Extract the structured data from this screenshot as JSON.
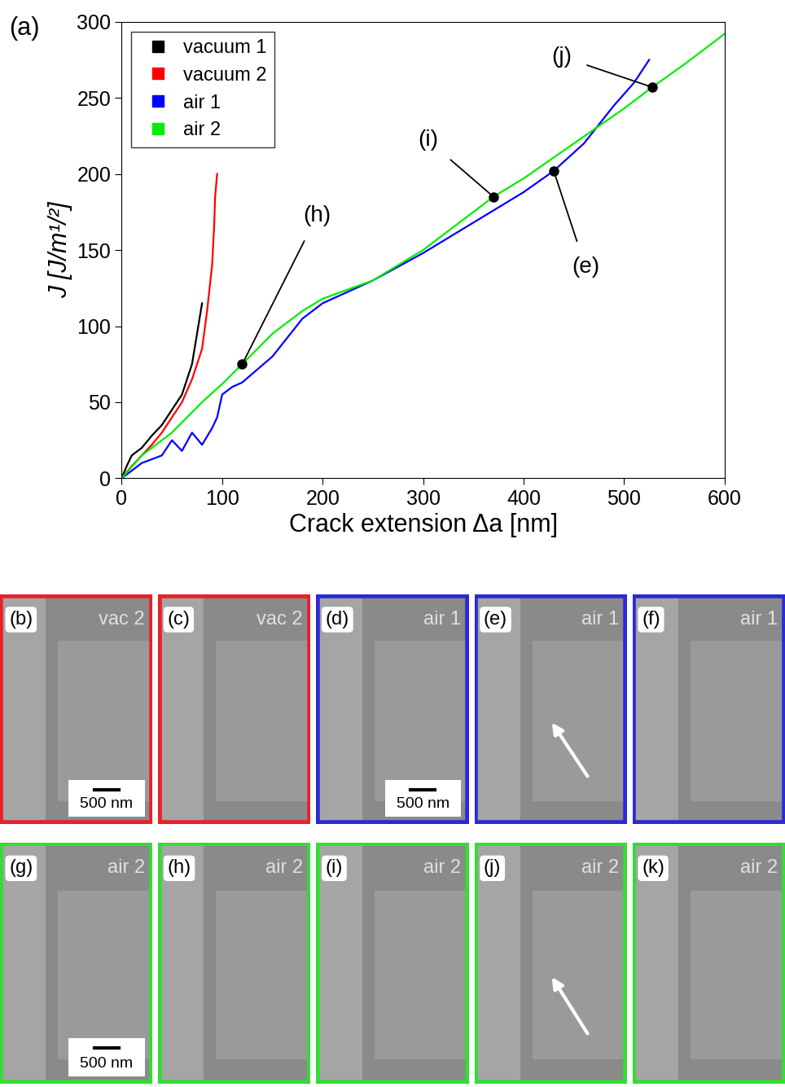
{
  "chart_data": {
    "type": "line",
    "title": "(a)",
    "x_label": "Crack extension Δa [nm]",
    "y_label": "J [J/m¹/²]",
    "xlim": [
      0,
      600
    ],
    "xticks": [
      0,
      100,
      200,
      300,
      400,
      500,
      600
    ],
    "ylim": [
      0,
      300
    ],
    "yticks": [
      0,
      50,
      100,
      150,
      200,
      250,
      300
    ],
    "legend": "upper left",
    "series": [
      {
        "name": "vacuum 1",
        "color": "#000000",
        "x": [
          0,
          5,
          10,
          20,
          30,
          40,
          50,
          60,
          70,
          75,
          80
        ],
        "values": [
          0,
          8,
          15,
          20,
          28,
          35,
          45,
          55,
          75,
          95,
          115
        ]
      },
      {
        "name": "vacuum 2",
        "color": "#ff0000",
        "x": [
          0,
          10,
          20,
          30,
          40,
          50,
          60,
          70,
          80,
          85,
          90,
          92,
          93,
          95
        ],
        "values": [
          0,
          8,
          15,
          22,
          30,
          40,
          50,
          65,
          85,
          110,
          140,
          165,
          185,
          200
        ]
      },
      {
        "name": "air 1",
        "color": "#0000ff",
        "x": [
          0,
          20,
          40,
          50,
          60,
          70,
          80,
          90,
          95,
          100,
          110,
          120,
          150,
          180,
          200,
          250,
          300,
          350,
          400,
          430,
          460,
          490,
          510,
          525
        ],
        "values": [
          0,
          10,
          15,
          25,
          18,
          30,
          22,
          33,
          40,
          55,
          60,
          63,
          80,
          105,
          115,
          130,
          148,
          168,
          188,
          202,
          220,
          245,
          260,
          275
        ]
      },
      {
        "name": "air 2",
        "color": "#00ee00",
        "x": [
          0,
          20,
          50,
          80,
          100,
          120,
          150,
          180,
          200,
          250,
          300,
          350,
          370,
          400,
          450,
          500,
          528,
          560,
          600
        ],
        "values": [
          0,
          15,
          30,
          50,
          62,
          75,
          95,
          110,
          118,
          130,
          150,
          175,
          185,
          197,
          220,
          243,
          257,
          272,
          292
        ]
      }
    ],
    "annotations": [
      {
        "text": "(h)",
        "x": 120,
        "y": 75
      },
      {
        "text": "(i)",
        "x": 370,
        "y": 185
      },
      {
        "text": "(j)",
        "x": 528,
        "y": 257
      },
      {
        "text": "(e)",
        "x": 430,
        "y": 202
      }
    ]
  },
  "panels": [
    [
      {
        "label": "(b)",
        "tag": "vac 2",
        "color": "#e8202a",
        "scale_bar": "500 nm",
        "arrow": false
      },
      {
        "label": "(c)",
        "tag": "vac 2",
        "color": "#e8202a",
        "arrow": false
      },
      {
        "label": "(d)",
        "tag": "air 1",
        "color": "#2a2ad8",
        "scale_bar": "500 nm",
        "arrow": false
      },
      {
        "label": "(e)",
        "tag": "air 1",
        "color": "#2a2ad8",
        "arrow": true
      },
      {
        "label": "(f)",
        "tag": "air 1",
        "color": "#2a2ad8",
        "arrow": false
      }
    ],
    [
      {
        "label": "(g)",
        "tag": "air 2",
        "color": "#33dd33",
        "scale_bar": "500 nm",
        "arrow": false
      },
      {
        "label": "(h)",
        "tag": "air 2",
        "color": "#33dd33",
        "arrow": false
      },
      {
        "label": "(i)",
        "tag": "air 2",
        "color": "#33dd33",
        "arrow": false
      },
      {
        "label": "(j)",
        "tag": "air 2",
        "color": "#33dd33",
        "arrow": true
      },
      {
        "label": "(k)",
        "tag": "air 2",
        "color": "#33dd33",
        "arrow": false
      }
    ]
  ]
}
